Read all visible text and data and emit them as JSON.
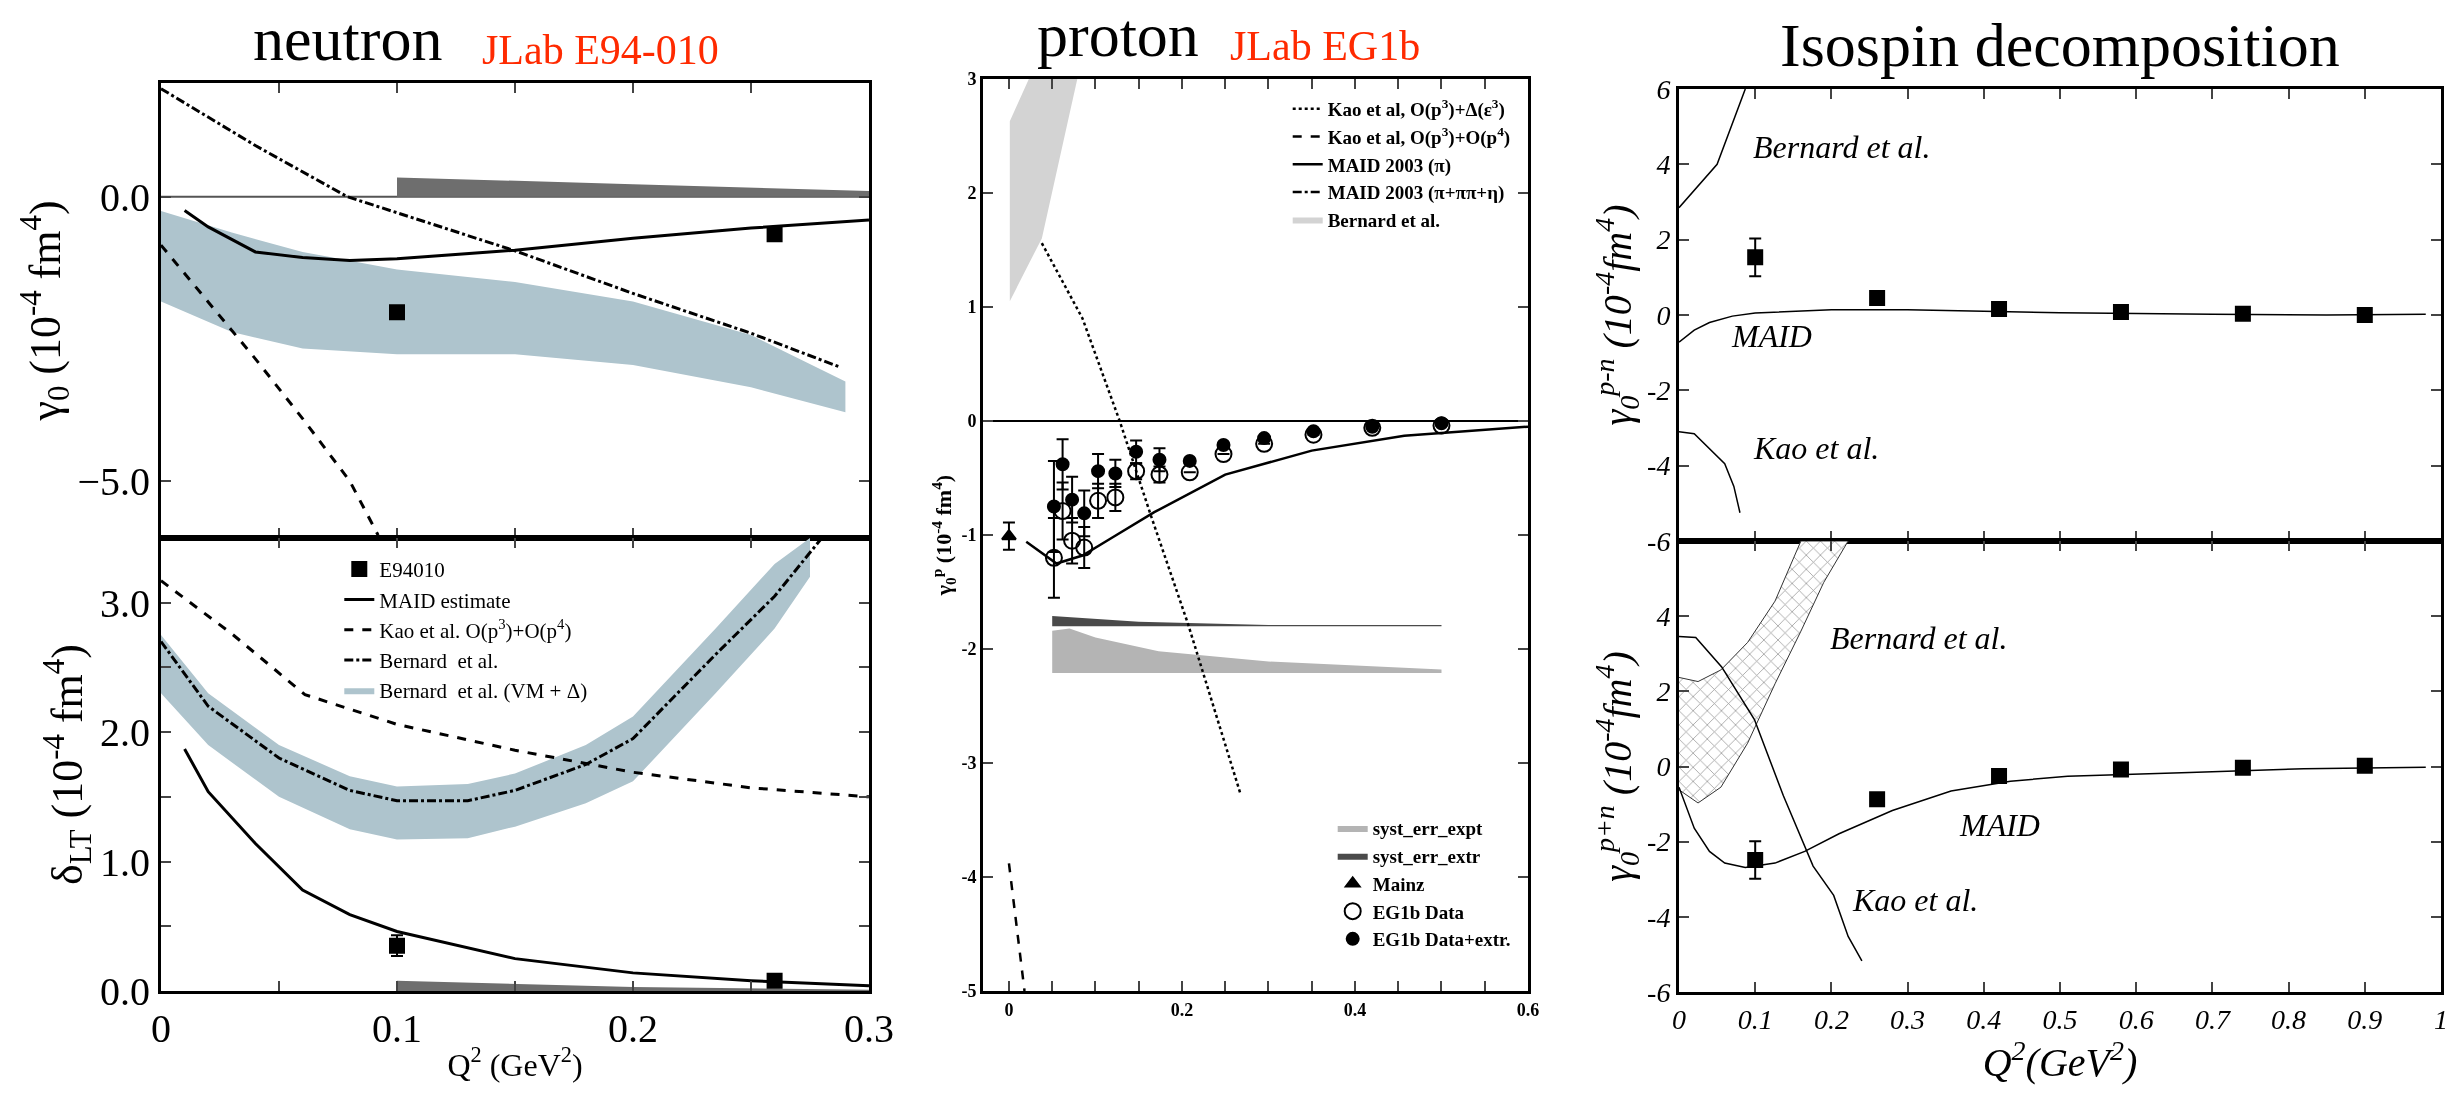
{
  "chart_data": [
    {
      "type": "line",
      "title": "neutron",
      "subtitle": "JLab E94-010",
      "ylabel": "γ$_{0}$ (10$^{-4}$ fm$^{4}$)",
      "xlim": [
        0,
        0.3
      ],
      "xticks": [
        {
          "value": 0,
          "label": null
        },
        {
          "value": 0.05,
          "label": null
        },
        {
          "value": 0.1,
          "label": null
        },
        {
          "value": 0.15,
          "label": null
        },
        {
          "value": 0.2,
          "label": null
        },
        {
          "value": 0.25,
          "label": null
        },
        {
          "value": 0.3,
          "label": null
        }
      ],
      "ylim": [
        -6,
        2
      ],
      "yticks": [
        {
          "value": -5,
          "label": "−5.0"
        },
        {
          "value": 0,
          "label": "0.0"
        }
      ],
      "tick_labels": "y",
      "ref_lines": [
        {
          "axis": "y",
          "value": 0,
          "color": "#555555"
        }
      ],
      "series": [
        {
          "type": "area",
          "color": "#aec4cd",
          "x": [
            0,
            0.03,
            0.06,
            0.1,
            0.15,
            0.2,
            0.25,
            0.29
          ],
          "values": [
            null,
            null,
            null,
            null,
            null,
            null,
            null,
            null
          ],
          "lower": [
            -1.84,
            -2.38,
            -2.67,
            -2.77,
            -2.77,
            -2.96,
            -3.35,
            -3.79
          ],
          "upper": [
            -0.25,
            -0.63,
            -0.97,
            -1.28,
            -1.5,
            -1.84,
            -2.43,
            -3.25
          ]
        },
        {
          "type": "area",
          "color": "#6e6e6e",
          "x": [
            0.1,
            0.2,
            0.3
          ],
          "values": [
            0.34,
            0.22,
            0.1
          ]
        },
        {
          "color": "#000000",
          "line_style": "solid",
          "x": [
            0.01,
            0.02,
            0.04,
            0.06,
            0.08,
            0.1,
            0.15,
            0.2,
            0.25,
            0.3
          ],
          "values": [
            -0.24,
            -0.53,
            -0.97,
            -1.07,
            -1.12,
            -1.09,
            -0.94,
            -0.73,
            -0.55,
            -0.41
          ]
        },
        {
          "color": "#000000",
          "line_style": "dashed",
          "x": [
            0,
            0.02,
            0.04,
            0.06,
            0.08,
            0.092
          ],
          "values": [
            -0.85,
            -1.85,
            -2.85,
            -3.9,
            -5.0,
            -5.95
          ]
        },
        {
          "color": "#000000",
          "line_style": "dashdot",
          "x": [
            0,
            0.04,
            0.079,
            0.15,
            0.2,
            0.25,
            0.288
          ],
          "values": [
            1.9,
            0.9,
            0,
            -0.95,
            -1.7,
            -2.4,
            -3.0
          ]
        },
        {
          "type": "scatter",
          "color": "#000000",
          "marker": "square",
          "x": [
            0.1,
            0.26
          ],
          "values": [
            -2.03,
            -0.66
          ]
        }
      ]
    },
    {
      "type": "line",
      "xlabel": "Q$^{2}$ (GeV$^{2}$)",
      "ylabel": "δ$_{LT}$ (10$^{-4}$ fm$^{4}$)",
      "xlim": [
        0,
        0.3
      ],
      "xticks": [
        0,
        {
          "value": 0.05,
          "label": null
        },
        0.1,
        {
          "value": 0.15,
          "label": null
        },
        0.2,
        {
          "value": 0.25,
          "label": null
        },
        0.3
      ],
      "ylim": [
        0,
        3.5
      ],
      "yticks": [
        {
          "value": 0,
          "label": "0.0"
        },
        {
          "value": 0.5,
          "label": null
        },
        {
          "value": 1,
          "label": "1.0"
        },
        {
          "value": 1.5,
          "label": null
        },
        {
          "value": 2,
          "label": "2.0"
        },
        {
          "value": 2.5,
          "label": null
        },
        {
          "value": 3,
          "label": "3.0"
        }
      ],
      "legend": "top",
      "series": [
        {
          "type": "scatter",
          "name": "E94010",
          "color": "#000000",
          "marker": "square",
          "x": [
            0.1,
            0.26
          ],
          "values": [
            0.35,
            0.08
          ],
          "errors": [
            0.08,
            null
          ]
        },
        {
          "name": "MAID estimate",
          "color": "#000000",
          "line_style": "solid",
          "x": [
            0.01,
            0.02,
            0.04,
            0.06,
            0.08,
            0.1,
            0.15,
            0.2,
            0.25,
            0.3
          ],
          "values": [
            1.87,
            1.54,
            1.14,
            0.78,
            0.59,
            0.46,
            0.25,
            0.14,
            0.08,
            0.04
          ]
        },
        {
          "name": "Kao et al. O(p$^{3}$)+O(p$^{4}$)",
          "color": "#000000",
          "line_style": "dashed",
          "x": [
            0,
            0.03,
            0.061,
            0.1,
            0.15,
            0.2,
            0.25,
            0.3
          ],
          "values": [
            3.17,
            2.76,
            2.29,
            2.06,
            1.86,
            1.69,
            1.57,
            1.5
          ]
        },
        {
          "name": "Bernard  et al.",
          "color": "#000000",
          "line_style": "dashdot",
          "x": [
            0,
            0.02,
            0.05,
            0.08,
            0.1,
            0.13,
            0.15,
            0.18,
            0.2,
            0.235,
            0.26,
            0.28
          ],
          "values": [
            2.7,
            2.2,
            1.8,
            1.55,
            1.47,
            1.47,
            1.55,
            1.75,
            1.95,
            2.6,
            3.05,
            3.5
          ]
        },
        {
          "type": "area",
          "name": "Bernard  et al. (VM + Δ)",
          "color": "#aec4cd",
          "x": [
            0,
            0.02,
            0.05,
            0.08,
            0.1,
            0.13,
            0.15,
            0.18,
            0.2,
            0.235,
            0.26,
            0.275
          ],
          "values": [
            null,
            null,
            null,
            null,
            null,
            null,
            null,
            null,
            null,
            null,
            null,
            null
          ],
          "lower": [
            2.3,
            1.9,
            1.5,
            1.25,
            1.17,
            1.18,
            1.27,
            1.45,
            1.62,
            2.3,
            2.8,
            3.2
          ],
          "upper": [
            2.75,
            2.3,
            1.9,
            1.66,
            1.58,
            1.6,
            1.68,
            1.9,
            2.12,
            2.8,
            3.3,
            3.5
          ]
        },
        {
          "type": "area",
          "color": "#6e6e6e",
          "x": [
            0.1,
            0.2,
            0.3
          ],
          "values": [
            0.08,
            0.03,
            0.01
          ]
        }
      ]
    },
    {
      "type": "line",
      "title": "proton",
      "subtitle": "JLab EG1b",
      "ylabel": "γ$_{0}$$^{p}$ (10$^{-4}$ fm$^{4}$)",
      "xlim": [
        -0.03,
        0.6
      ],
      "xticks": [
        0,
        {
          "value": 0.05,
          "label": null
        },
        {
          "value": 0.1,
          "label": null
        },
        {
          "value": 0.15,
          "label": null
        },
        0.2,
        {
          "value": 0.25,
          "label": null
        },
        {
          "value": 0.3,
          "label": null
        },
        {
          "value": 0.35,
          "label": null
        },
        0.4,
        {
          "value": 0.45,
          "label": null
        },
        {
          "value": 0.5,
          "label": null
        },
        {
          "value": 0.55,
          "label": null
        },
        0.6
      ],
      "ylim": [
        -5,
        3
      ],
      "yticks": [
        -5,
        -4,
        -3,
        -2,
        -1,
        0,
        1,
        2,
        3
      ],
      "legend": "top right",
      "ref_lines": [
        {
          "axis": "y",
          "value": 0,
          "color": "#000000"
        }
      ],
      "series": [
        {
          "name": "Kao et al, O(p$^{3}$)+Δ(ε$^{3}$)",
          "color": "#000000",
          "line_style": "dotted",
          "x": [
            0.038,
            0.085,
            0.128,
            0.165,
            0.207,
            0.268
          ],
          "values": [
            1.56,
            0.9,
            0,
            -0.85,
            -1.78,
            -3.28
          ]
        },
        {
          "name": "Kao et al, O(p$^{3}$)+O(p$^{4}$)",
          "color": "#000000",
          "line_style": "dashed",
          "x": [
            0,
            0.018
          ],
          "values": [
            -3.88,
            -5
          ]
        },
        {
          "name": "MAID 2003 (π)",
          "color": "#000000",
          "line_style": "solid",
          "x": [
            0.02,
            0.055,
            0.085,
            0.12,
            0.168,
            0.25,
            0.35,
            0.457,
            0.6
          ],
          "values": [
            -1.06,
            -1.25,
            -1.18,
            -1.02,
            -0.8,
            -0.47,
            -0.26,
            -0.13,
            -0.05
          ]
        },
        {
          "name": "MAID 2003 (π+ππ+η)",
          "color": "#000000",
          "line_style": "dashdot"
        },
        {
          "type": "area",
          "name": "Bernard et al.",
          "color": "#d3d3d3",
          "x": [
            0.001,
            0.023,
            0.038,
            0.079
          ],
          "values": [
            null,
            null,
            null,
            null
          ],
          "lower": [
            1.05,
            1.38,
            1.6,
            3.0
          ],
          "upper": [
            2.63,
            3.0,
            3.0,
            3.0
          ]
        },
        {
          "type": "area",
          "name": "syst_err_expt",
          "color": "#b4b4b4",
          "x": [
            0.05,
            0.07,
            0.1,
            0.173,
            0.3,
            0.5
          ],
          "values": [
            null,
            null,
            null,
            null,
            null,
            null
          ],
          "lower": [
            -2.21,
            -2.21,
            -2.21,
            -2.21,
            -2.21,
            -2.21
          ],
          "upper": [
            -1.84,
            -1.82,
            -1.9,
            -2.02,
            -2.11,
            -2.18
          ]
        },
        {
          "type": "area",
          "name": "syst_err_extr",
          "color": "#4a4a4a",
          "x": [
            0.05,
            0.15,
            0.3,
            0.5
          ],
          "values": [
            null,
            null,
            null,
            null
          ],
          "lower": [
            -1.8,
            -1.8,
            -1.8,
            -1.8
          ],
          "upper": [
            -1.71,
            -1.76,
            -1.79,
            -1.79
          ]
        },
        {
          "type": "scatter",
          "name": "Mainz",
          "color": "#000000",
          "marker": "triangle",
          "x": [
            0
          ],
          "values": [
            -1.01
          ],
          "errors": [
            0.12
          ]
        },
        {
          "type": "scatter",
          "name": "EG1b Data",
          "color": "#000000",
          "marker": "circle-open",
          "x": [
            0.052,
            0.062,
            0.073,
            0.087,
            0.103,
            0.123,
            0.147,
            0.174,
            0.209,
            0.248,
            0.295,
            0.352,
            0.42,
            0.5
          ],
          "values": [
            -1.2,
            -0.79,
            -1.05,
            -1.11,
            -0.7,
            -0.67,
            -0.44,
            -0.47,
            -0.45,
            -0.29,
            -0.2,
            -0.12,
            -0.06,
            -0.04
          ],
          "errors": [
            0.35,
            0.25,
            0.2,
            0.18,
            0.15,
            0.12,
            0.07,
            0.07,
            null,
            null,
            null,
            null,
            null,
            null
          ]
        },
        {
          "type": "scatter",
          "name": "EG1b Data+extr.",
          "color": "#000000",
          "marker": "circle",
          "x": [
            0.052,
            0.062,
            0.073,
            0.087,
            0.103,
            0.123,
            0.147,
            0.174,
            0.209,
            0.248,
            0.295,
            0.352,
            0.42,
            0.5
          ],
          "values": [
            -0.75,
            -0.38,
            -0.69,
            -0.81,
            -0.44,
            -0.46,
            -0.27,
            -0.34,
            -0.35,
            -0.21,
            -0.15,
            -0.09,
            -0.05,
            -0.02
          ],
          "errors": [
            0.4,
            0.22,
            0.2,
            0.2,
            0.15,
            0.12,
            0.1,
            0.1,
            null,
            null,
            null,
            null,
            null,
            null
          ]
        }
      ]
    },
    {
      "type": "line",
      "title": "Isospin decomposition",
      "ylabel": "γ$_{0}$$^{p-n}$ (10$^{-4}$fm$^{4}$)",
      "xlim": [
        0,
        1
      ],
      "xticks": [
        0,
        0.1,
        0.2,
        0.3,
        0.4,
        0.5,
        0.6,
        0.7,
        0.8,
        0.9,
        1
      ],
      "ylim": [
        -6,
        6
      ],
      "yticks": [
        -6,
        -4,
        -2,
        0,
        2,
        4,
        6
      ],
      "tick_labels": "y",
      "annotations": [
        "Bernard et al.",
        "MAID",
        "Kao et al."
      ],
      "series": [
        {
          "color": "#000000",
          "line_style": "solid",
          "x": [
            0,
            0.02,
            0.04,
            0.07,
            0.1,
            0.2,
            0.3,
            0.4,
            0.5,
            0.7,
            0.85,
            0.98
          ],
          "values": [
            -0.72,
            -0.4,
            -0.2,
            -0.03,
            0.05,
            0.14,
            0.14,
            0.1,
            0.06,
            0.02,
            0.0,
            0.02
          ]
        },
        {
          "color": "#000000",
          "line_style": "solid",
          "x": [
            0,
            0.05,
            0.087
          ],
          "values": [
            2.85,
            4.0,
            6.0
          ]
        },
        {
          "color": "#000000",
          "line_style": "solid",
          "x": [
            0,
            0.02,
            0.06,
            0.072,
            0.08
          ],
          "values": [
            -3.1,
            -3.15,
            -3.95,
            -4.55,
            -5.25
          ]
        },
        {
          "type": "scatter",
          "color": "#000000",
          "marker": "square",
          "x": [
            0.1,
            0.26,
            0.42,
            0.58,
            0.74,
            0.9
          ],
          "values": [
            1.53,
            0.45,
            0.16,
            0.08,
            0.03,
            0.0
          ],
          "errors": [
            0.5,
            null,
            null,
            null,
            null,
            null
          ]
        }
      ]
    },
    {
      "type": "line",
      "xlabel": "Q$^{2}$(GeV$^{2}$)",
      "ylabel": "γ$_{0}$$^{p+n}$ (10$^{-4}$fm$^{4}$)",
      "xlim": [
        0,
        1
      ],
      "xticks": [
        0,
        0.1,
        0.2,
        0.3,
        0.4,
        0.5,
        0.6,
        0.7,
        0.8,
        0.9,
        1
      ],
      "ylim": [
        -6,
        6
      ],
      "yticks": [
        -6,
        -4,
        -2,
        0,
        2,
        4,
        {
          "value": 6,
          "label": null
        }
      ],
      "annotations": [
        "Bernard et al.",
        "MAID",
        "Kao et al."
      ],
      "series": [
        {
          "type": "area",
          "color": "#333333",
          "x": [
            0,
            0.025,
            0.055,
            0.09,
            0.126,
            0.16,
            0.19,
            0.222
          ],
          "values": [
            null,
            null,
            null,
            null,
            null,
            null,
            null,
            null
          ],
          "lower": [
            -0.62,
            -0.97,
            -0.55,
            0.62,
            2.2,
            3.6,
            4.9,
            6.0
          ],
          "upper": [
            2.37,
            2.26,
            2.57,
            3.3,
            4.4,
            6.0,
            6.0,
            6.0
          ]
        },
        {
          "color": "#000000",
          "line_style": "solid",
          "x": [
            0,
            0.02,
            0.04,
            0.06,
            0.087,
            0.126,
            0.165,
            0.21,
            0.28,
            0.357,
            0.435,
            0.51,
            0.67,
            0.82,
            0.98
          ],
          "values": [
            -0.55,
            -1.64,
            -2.26,
            -2.57,
            -2.69,
            -2.57,
            -2.26,
            -1.79,
            -1.17,
            -0.65,
            -0.39,
            -0.26,
            -0.16,
            -0.06,
            -0.02
          ]
        },
        {
          "color": "#000000",
          "line_style": "solid",
          "x": [
            0,
            0.022,
            0.056,
            0.099,
            0.137,
            0.176,
            0.203,
            0.222,
            0.24
          ],
          "values": [
            3.46,
            3.43,
            2.65,
            1.25,
            -0.78,
            -2.65,
            -3.43,
            -4.52,
            -5.17
          ]
        },
        {
          "type": "scatter",
          "color": "#000000",
          "marker": "square",
          "x": [
            0.1,
            0.26,
            0.42,
            0.58,
            0.74,
            0.9
          ],
          "values": [
            -2.49,
            -0.87,
            -0.25,
            -0.08,
            -0.03,
            0.02
          ],
          "errors": [
            0.5,
            null,
            null,
            null,
            null,
            null
          ]
        }
      ]
    }
  ]
}
